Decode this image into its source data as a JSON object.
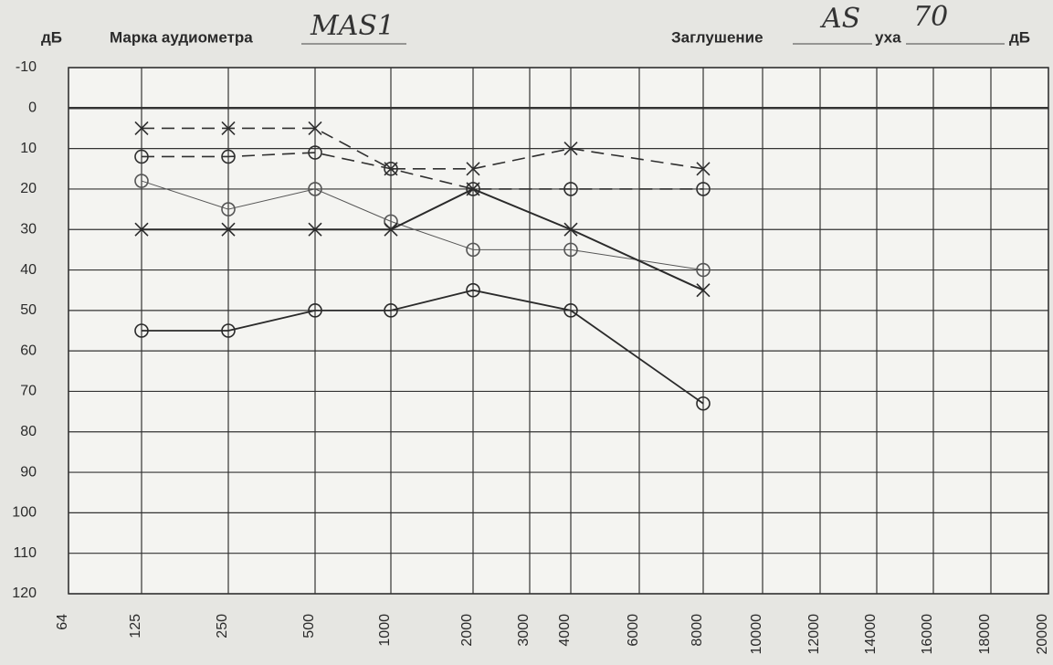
{
  "chart_data": {
    "type": "line",
    "header": {
      "y_unit": "дБ",
      "audiometer_label": "Марка аудиометра",
      "audiometer_value": "MAS1",
      "masking_label": "Заглушение",
      "masking_value": "AS",
      "ear_label": "уха",
      "ear_value": "70",
      "masking_unit": "дБ"
    },
    "ylim": [
      -10,
      120
    ],
    "y_inverted": true,
    "yticks": [
      -10,
      0,
      10,
      20,
      30,
      40,
      50,
      60,
      70,
      80,
      90,
      100,
      110,
      120
    ],
    "xticks": [
      64,
      125,
      250,
      500,
      1000,
      2000,
      3000,
      4000,
      6000,
      8000,
      10000,
      12000,
      14000,
      16000,
      18000,
      20000
    ],
    "grid": true,
    "series": [
      {
        "color": "#2f2f2f",
        "marker": "x",
        "dashed": true,
        "width": 1.6,
        "x": [
          125,
          250,
          500,
          1000,
          2000,
          4000,
          8000
        ],
        "values": [
          5,
          5,
          5,
          15,
          15,
          10,
          15
        ]
      },
      {
        "color": "#2f2f2f",
        "marker": "o",
        "dashed": true,
        "width": 1.6,
        "x": [
          125,
          250,
          500,
          1000,
          2000,
          4000,
          8000
        ],
        "values": [
          12,
          12,
          11,
          15,
          20,
          20,
          20
        ]
      },
      {
        "color": "#555555",
        "marker": "o",
        "dashed": false,
        "width": 1,
        "x": [
          125,
          250,
          500,
          1000,
          2000,
          4000,
          8000
        ],
        "values": [
          18,
          25,
          20,
          28,
          35,
          35,
          40
        ]
      },
      {
        "color": "#2a2a2a",
        "marker": "x",
        "dashed": false,
        "width": 2,
        "x": [
          125,
          250,
          500,
          1000,
          2000,
          4000,
          8000
        ],
        "values": [
          30,
          30,
          30,
          30,
          20,
          30,
          45
        ]
      },
      {
        "color": "#2a2a2a",
        "marker": "o",
        "dashed": false,
        "width": 1.8,
        "x": [
          125,
          250,
          500,
          1000,
          2000,
          4000,
          8000
        ],
        "values": [
          55,
          55,
          50,
          50,
          45,
          50,
          73
        ]
      }
    ]
  }
}
